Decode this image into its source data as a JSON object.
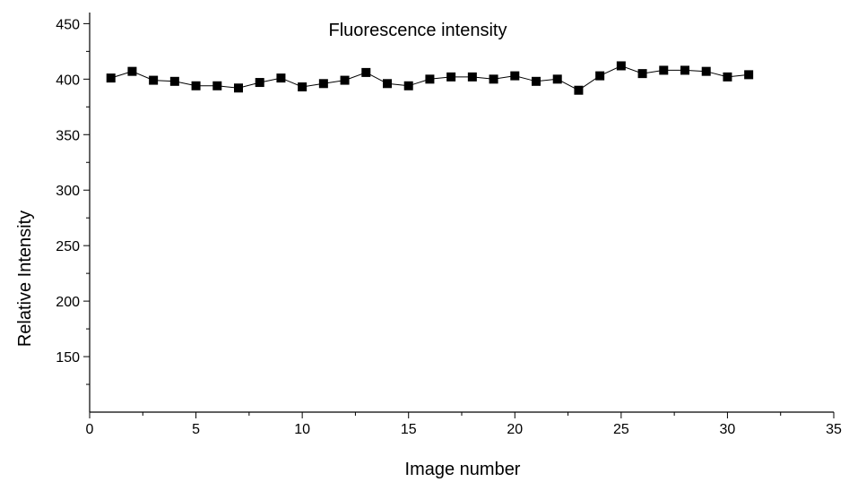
{
  "chart_data": {
    "type": "scatter",
    "title": "Fluorescence intensity",
    "xlabel": "Image number",
    "ylabel": "Relative Intensity",
    "xlim": [
      0,
      35
    ],
    "ylim": [
      100,
      460
    ],
    "xticks": [
      0,
      5,
      10,
      15,
      20,
      25,
      30,
      35
    ],
    "yticks": [
      150,
      200,
      250,
      300,
      350,
      400,
      450
    ],
    "grid": false,
    "marker": "square",
    "connect_points": true,
    "colors": {
      "marker": "#000000",
      "line": "#000000",
      "axis": "#000000"
    },
    "series": [
      {
        "x": [
          1,
          2,
          3,
          4,
          5,
          6,
          7,
          8,
          9,
          10,
          11,
          12,
          13,
          14,
          15,
          16,
          17,
          18,
          19,
          20,
          21,
          22,
          23,
          24,
          25,
          26,
          27,
          28,
          29,
          30,
          31
        ],
        "y": [
          401,
          407,
          399,
          398,
          394,
          394,
          392,
          397,
          401,
          393,
          396,
          399,
          406,
          396,
          394,
          400,
          402,
          402,
          400,
          403,
          398,
          400,
          390,
          403,
          412,
          405,
          408,
          408,
          407,
          402,
          404
        ]
      }
    ]
  }
}
